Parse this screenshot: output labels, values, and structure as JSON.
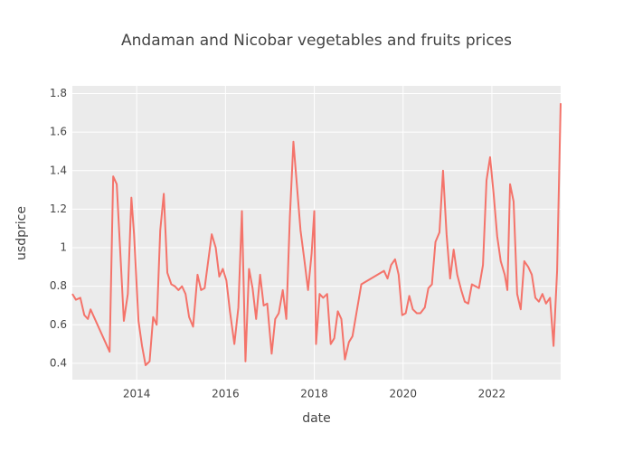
{
  "chart_data": {
    "type": "line",
    "title": "Andaman and Nicobar vegetables and fruits prices",
    "x_label": "date",
    "y_label": "usdprice",
    "xlim": [
      2012.55,
      2023.55
    ],
    "xticks": [
      2014,
      2016,
      2018,
      2020,
      2022
    ],
    "ylim": [
      0.315,
      1.84
    ],
    "yticks": [
      0.4,
      0.6,
      0.8,
      1,
      1.2,
      1.4,
      1.6,
      1.8
    ],
    "grid": true,
    "background": "#ebebeb",
    "series": [
      {
        "color": "#f4736a",
        "x": [
          2012.55,
          2012.63,
          2012.73,
          2012.82,
          2012.9,
          2012.96,
          2013.39,
          2013.47,
          2013.55,
          2013.71,
          2013.8,
          2013.88,
          2013.94,
          2014.04,
          2014.12,
          2014.2,
          2014.29,
          2014.37,
          2014.45,
          2014.53,
          2014.61,
          2014.69,
          2014.78,
          2014.86,
          2014.94,
          2015.02,
          2015.1,
          2015.18,
          2015.27,
          2015.37,
          2015.45,
          2015.53,
          2015.61,
          2015.69,
          2015.78,
          2015.86,
          2015.94,
          2016.02,
          2016.1,
          2016.2,
          2016.29,
          2016.37,
          2016.45,
          2016.53,
          2016.61,
          2016.69,
          2016.78,
          2016.86,
          2016.94,
          2017.04,
          2017.12,
          2017.2,
          2017.29,
          2017.37,
          2017.45,
          2017.53,
          2017.61,
          2017.69,
          2017.78,
          2017.86,
          2017.94,
          2018.0,
          2018.04,
          2018.12,
          2018.2,
          2018.29,
          2018.37,
          2018.45,
          2018.53,
          2018.61,
          2018.69,
          2018.78,
          2018.86,
          2019.06,
          2019.57,
          2019.65,
          2019.73,
          2019.82,
          2019.9,
          2019.98,
          2020.06,
          2020.14,
          2020.22,
          2020.31,
          2020.39,
          2020.49,
          2020.57,
          2020.65,
          2020.73,
          2020.82,
          2020.9,
          2020.98,
          2021.06,
          2021.14,
          2021.22,
          2021.31,
          2021.39,
          2021.47,
          2021.55,
          2021.71,
          2021.8,
          2021.88,
          2021.96,
          2022.04,
          2022.12,
          2022.2,
          2022.29,
          2022.35,
          2022.41,
          2022.49,
          2022.57,
          2022.65,
          2022.73,
          2022.82,
          2022.9,
          2022.98,
          2023.06,
          2023.14,
          2023.22,
          2023.31,
          2023.39,
          2023.47,
          2023.55
        ],
        "values": [
          0.76,
          0.73,
          0.74,
          0.65,
          0.63,
          0.68,
          0.46,
          1.37,
          1.33,
          0.62,
          0.76,
          1.26,
          1.07,
          0.62,
          0.49,
          0.39,
          0.41,
          0.64,
          0.6,
          1.09,
          1.28,
          0.87,
          0.81,
          0.8,
          0.78,
          0.8,
          0.76,
          0.64,
          0.59,
          0.86,
          0.78,
          0.79,
          0.93,
          1.07,
          1.0,
          0.85,
          0.89,
          0.83,
          0.67,
          0.5,
          0.69,
          1.19,
          0.41,
          0.89,
          0.79,
          0.63,
          0.86,
          0.7,
          0.71,
          0.45,
          0.63,
          0.66,
          0.78,
          0.63,
          1.16,
          1.55,
          1.32,
          1.09,
          0.93,
          0.78,
          0.97,
          1.19,
          0.5,
          0.76,
          0.74,
          0.76,
          0.5,
          0.53,
          0.67,
          0.63,
          0.42,
          0.51,
          0.54,
          0.81,
          0.88,
          0.84,
          0.91,
          0.94,
          0.86,
          0.65,
          0.66,
          0.75,
          0.68,
          0.66,
          0.66,
          0.69,
          0.79,
          0.81,
          1.03,
          1.08,
          1.4,
          1.07,
          0.84,
          0.99,
          0.86,
          0.78,
          0.72,
          0.71,
          0.81,
          0.79,
          0.91,
          1.35,
          1.47,
          1.28,
          1.06,
          0.93,
          0.86,
          0.78,
          1.33,
          1.24,
          0.76,
          0.68,
          0.93,
          0.9,
          0.86,
          0.74,
          0.72,
          0.76,
          0.71,
          0.74,
          0.49,
          0.88,
          1.75
        ]
      }
    ]
  }
}
